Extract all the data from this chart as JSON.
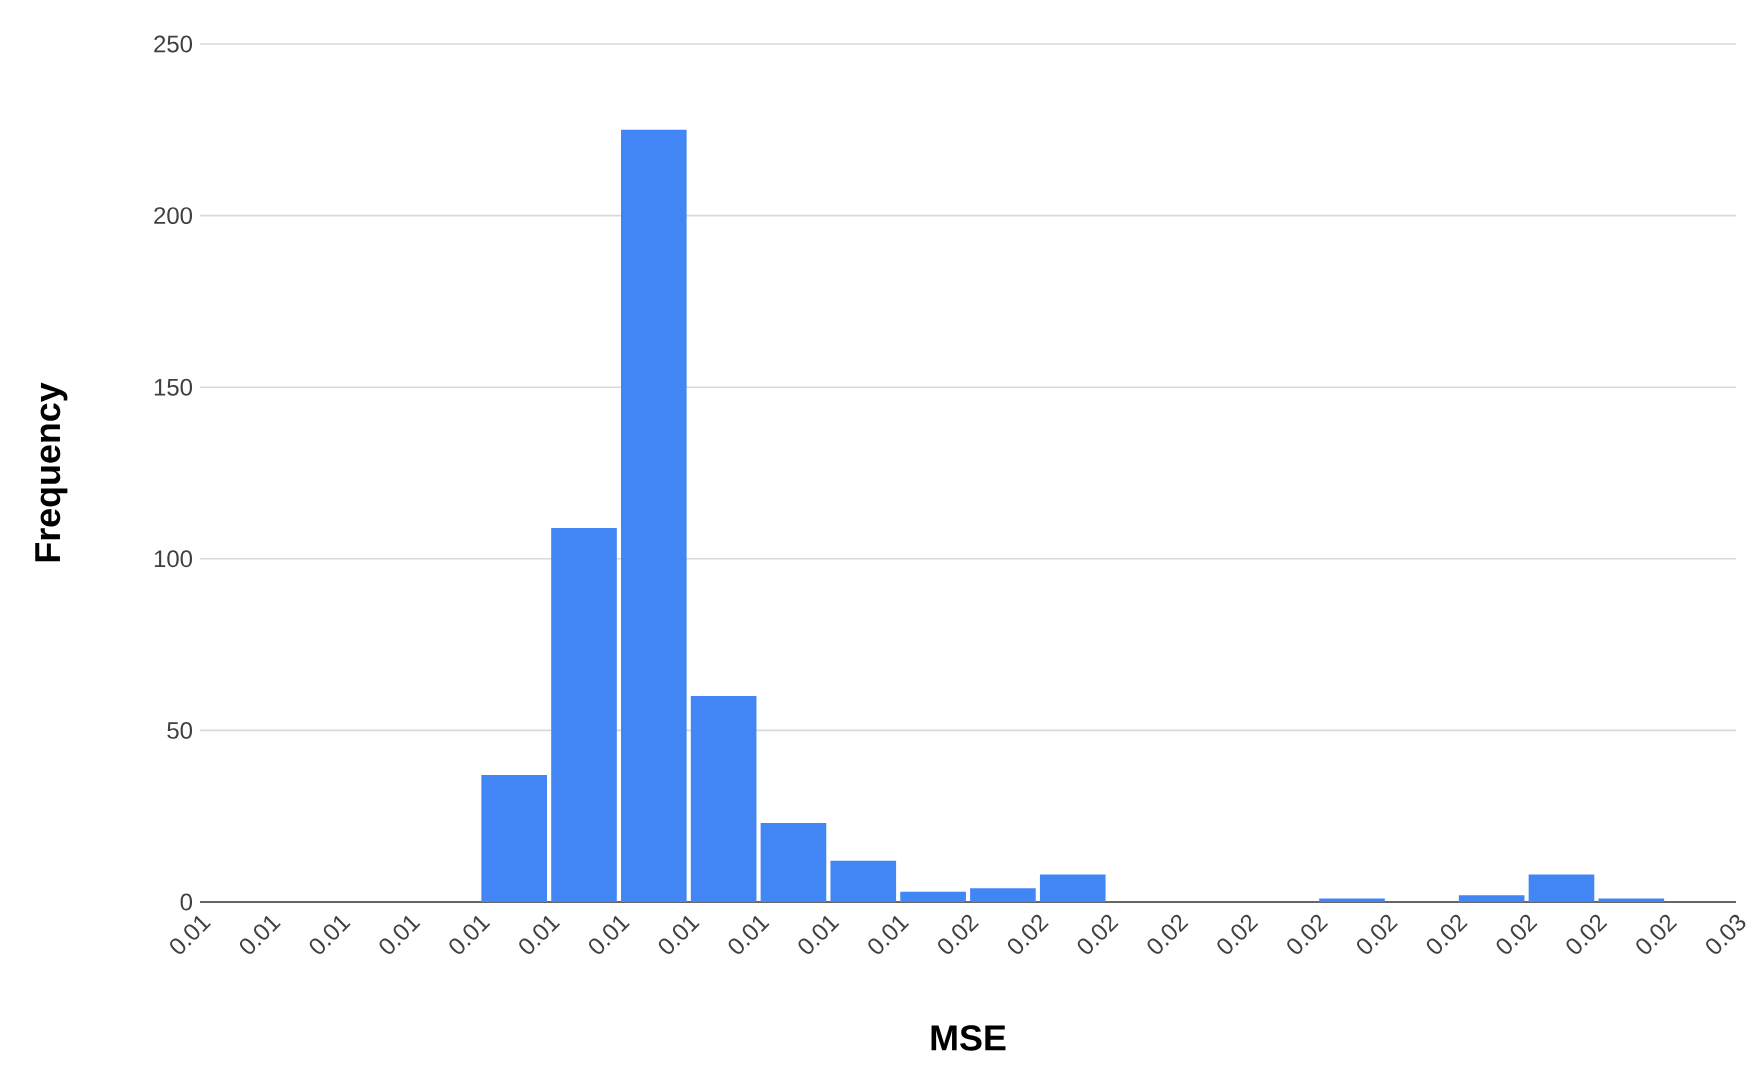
{
  "chart_data": {
    "type": "histogram",
    "xlabel": "MSE",
    "ylabel": "Frequency",
    "color": "#4285f4",
    "bins": [
      0.0055,
      0.0064,
      0.0073,
      0.0082,
      0.0091,
      0.01,
      0.0109,
      0.0118,
      0.0127,
      0.0136,
      0.0145,
      0.0154,
      0.0163,
      0.0172,
      0.0181,
      0.019,
      0.0199,
      0.0208,
      0.0217,
      0.0226,
      0.0235,
      0.0244,
      0.0253
    ],
    "values": [
      0,
      0,
      0,
      0,
      37,
      109,
      225,
      60,
      23,
      12,
      3,
      4,
      8,
      0,
      0,
      0,
      1,
      0,
      2,
      8,
      1,
      0
    ],
    "xlim": [
      0.0055,
      0.0253
    ],
    "xticks": [
      {
        "value": 0.0055,
        "label": "0.01"
      },
      {
        "value": 0.0064,
        "label": "0.01"
      },
      {
        "value": 0.0073,
        "label": "0.01"
      },
      {
        "value": 0.0082,
        "label": "0.01"
      },
      {
        "value": 0.0091,
        "label": "0.01"
      },
      {
        "value": 0.01,
        "label": "0.01"
      },
      {
        "value": 0.0109,
        "label": "0.01"
      },
      {
        "value": 0.0118,
        "label": "0.01"
      },
      {
        "value": 0.0127,
        "label": "0.01"
      },
      {
        "value": 0.0136,
        "label": "0.01"
      },
      {
        "value": 0.0145,
        "label": "0.01"
      },
      {
        "value": 0.0154,
        "label": "0.02"
      },
      {
        "value": 0.0163,
        "label": "0.02"
      },
      {
        "value": 0.0172,
        "label": "0.02"
      },
      {
        "value": 0.0181,
        "label": "0.02"
      },
      {
        "value": 0.019,
        "label": "0.02"
      },
      {
        "value": 0.0199,
        "label": "0.02"
      },
      {
        "value": 0.0208,
        "label": "0.02"
      },
      {
        "value": 0.0217,
        "label": "0.02"
      },
      {
        "value": 0.0226,
        "label": "0.02"
      },
      {
        "value": 0.0235,
        "label": "0.02"
      },
      {
        "value": 0.0244,
        "label": "0.02"
      },
      {
        "value": 0.0253,
        "label": "0.03"
      }
    ],
    "ylim": [
      0,
      250
    ],
    "yticks": [
      0,
      50,
      100,
      150,
      200,
      250
    ],
    "grid": "y"
  }
}
